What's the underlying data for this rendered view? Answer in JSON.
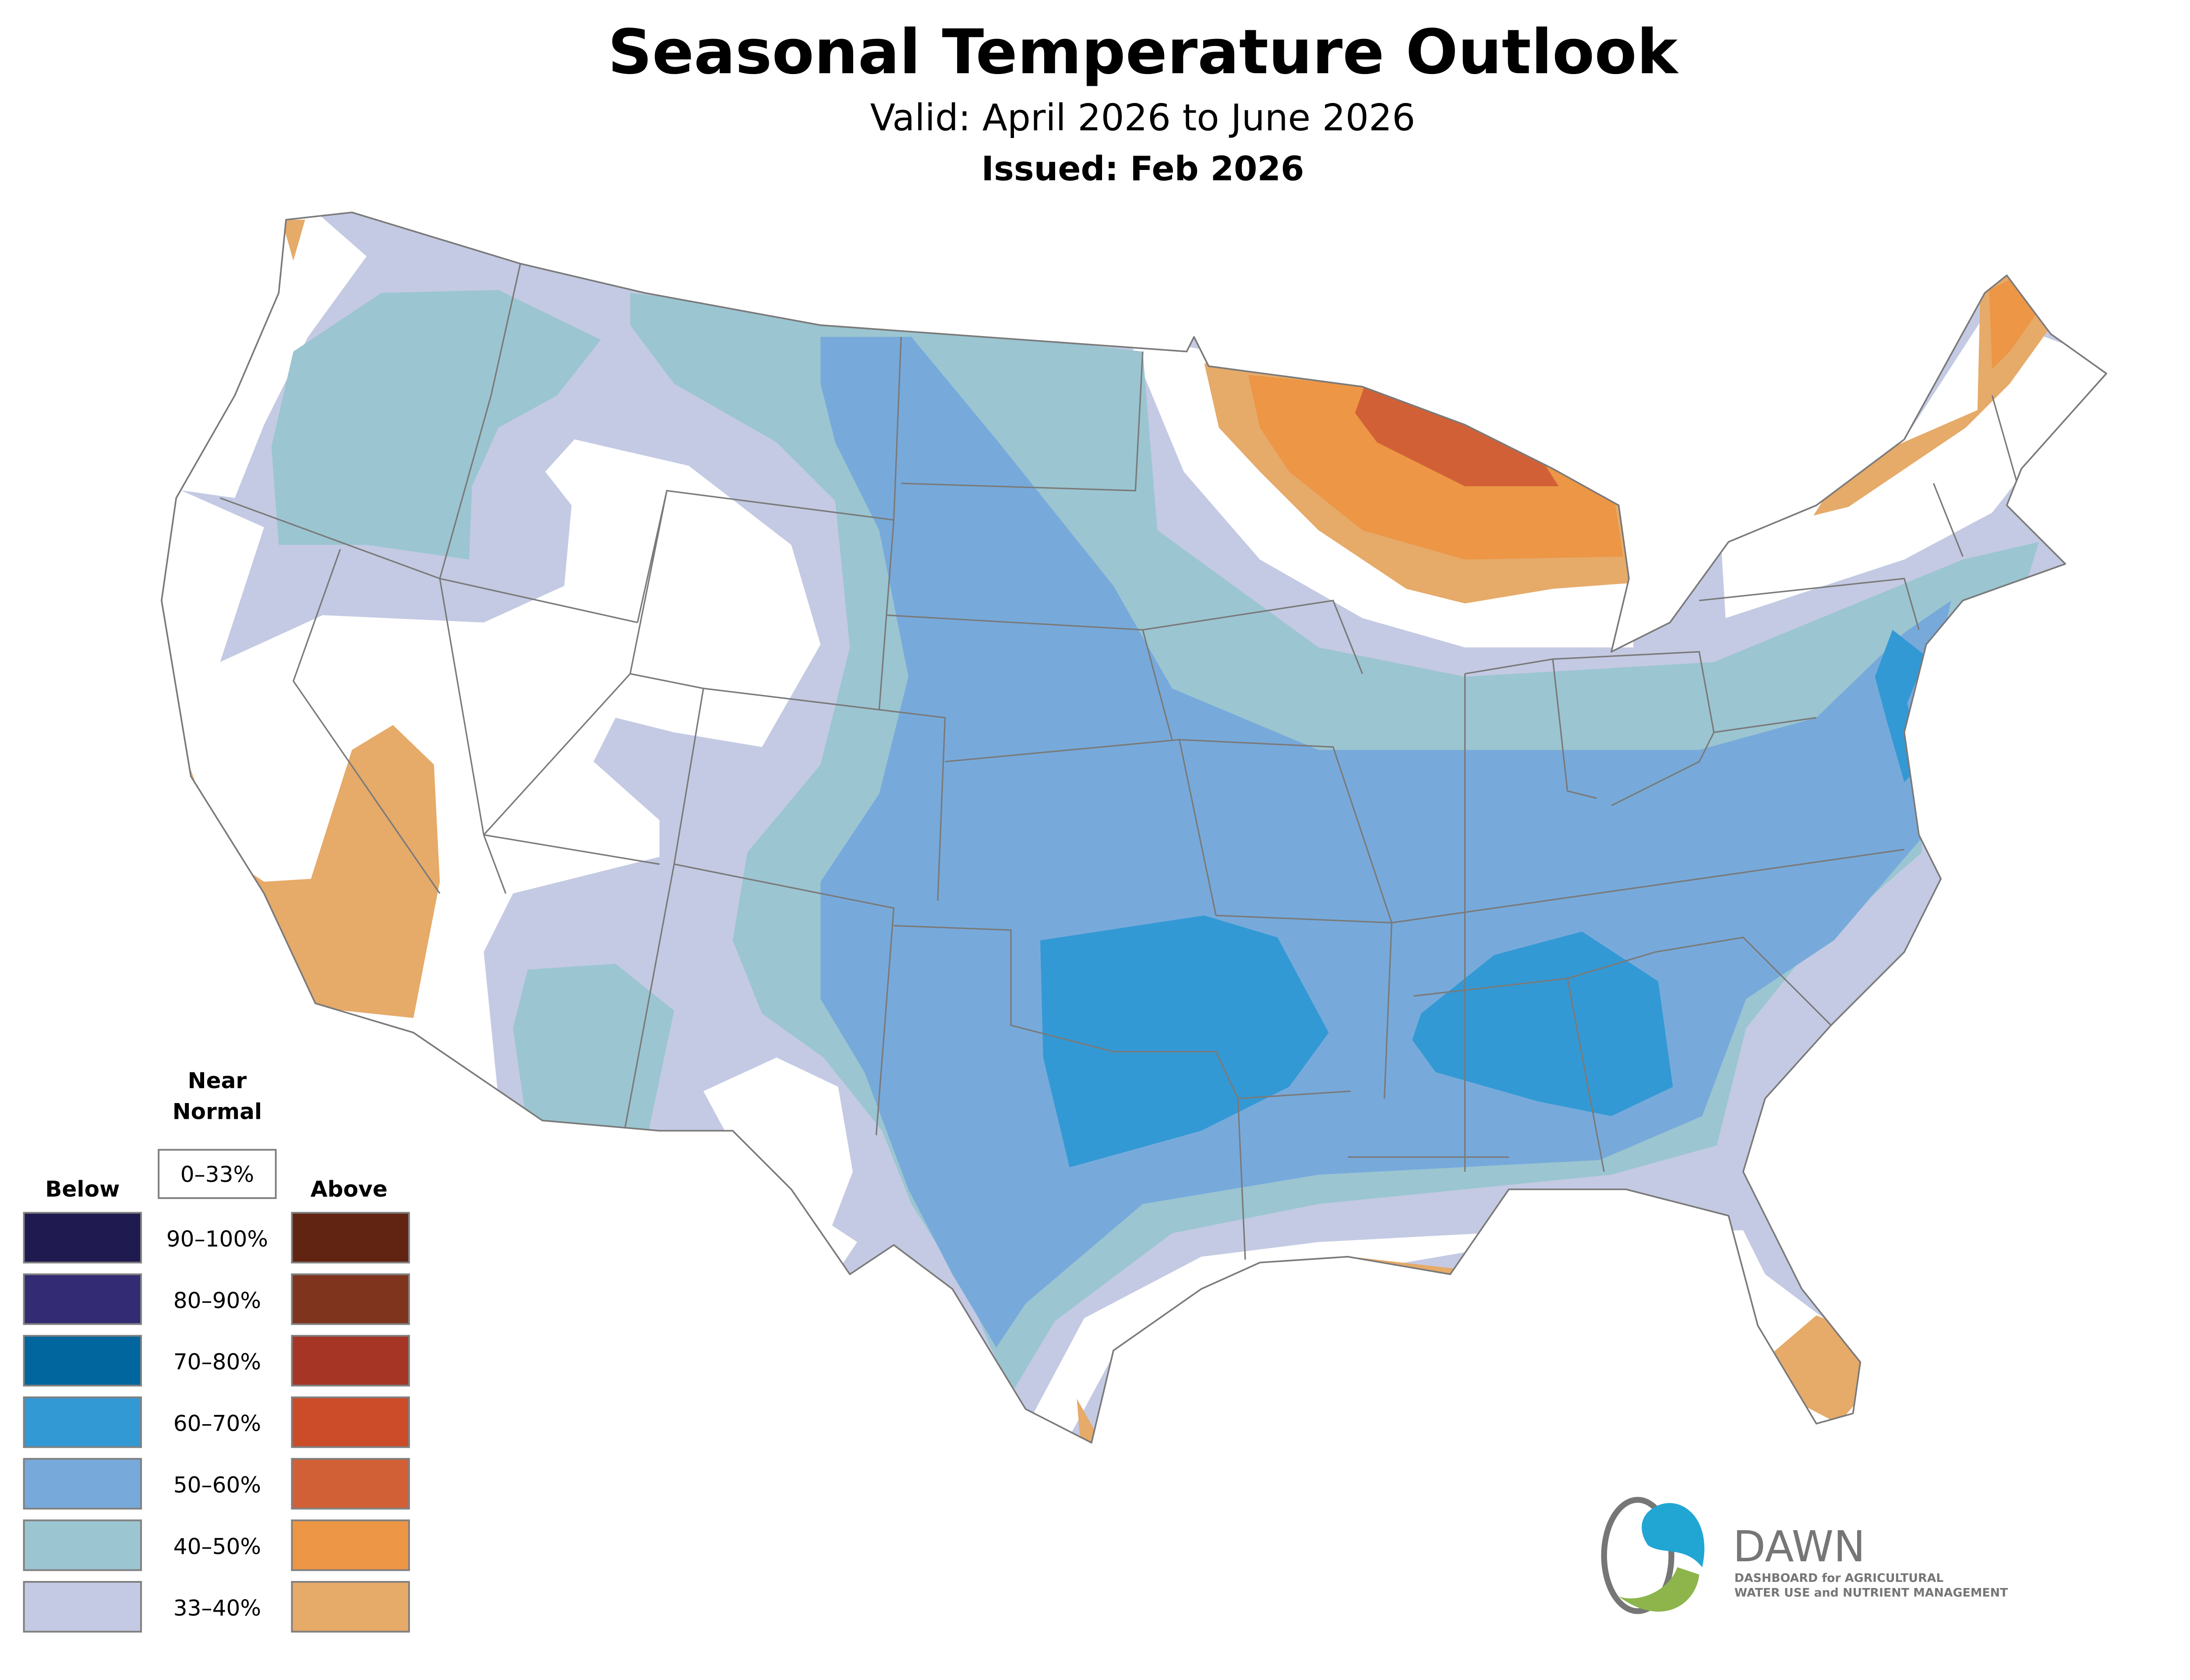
{
  "header": {
    "title": "Seasonal Temperature Outlook",
    "valid": "Valid: April 2026 to June 2026",
    "issued": "Issued: Feb 2026"
  },
  "legend": {
    "near_normal_title_1": "Near",
    "near_normal_title_2": "Normal",
    "near_normal_range": "0–33%",
    "below_label": "Below",
    "above_label": "Above",
    "rows": [
      {
        "range": "90–100%",
        "below_color": "#1f1a4f",
        "above_color": "#622412"
      },
      {
        "range": "80–90%",
        "below_color": "#332c74",
        "above_color": "#7f341e"
      },
      {
        "range": "70–80%",
        "below_color": "#00669d",
        "above_color": "#a63526"
      },
      {
        "range": "60–70%",
        "below_color": "#3399d4",
        "above_color": "#cc4c2a"
      },
      {
        "range": "50–60%",
        "below_color": "#77aadb",
        "above_color": "#d26036"
      },
      {
        "range": "40–50%",
        "below_color": "#9bc5d1",
        "above_color": "#ec9646"
      },
      {
        "range": "33–40%",
        "below_color": "#c4cae3",
        "above_color": "#e6aa69"
      }
    ]
  },
  "logo": {
    "name": "DAWN",
    "tagline_1": "DASHBOARD for AGRICULTURAL",
    "tagline_2": "WATER USE and NUTRIENT MANAGEMENT",
    "colors": {
      "blue": "#21a6d4",
      "green": "#8db54b",
      "gray": "#767676"
    }
  }
}
